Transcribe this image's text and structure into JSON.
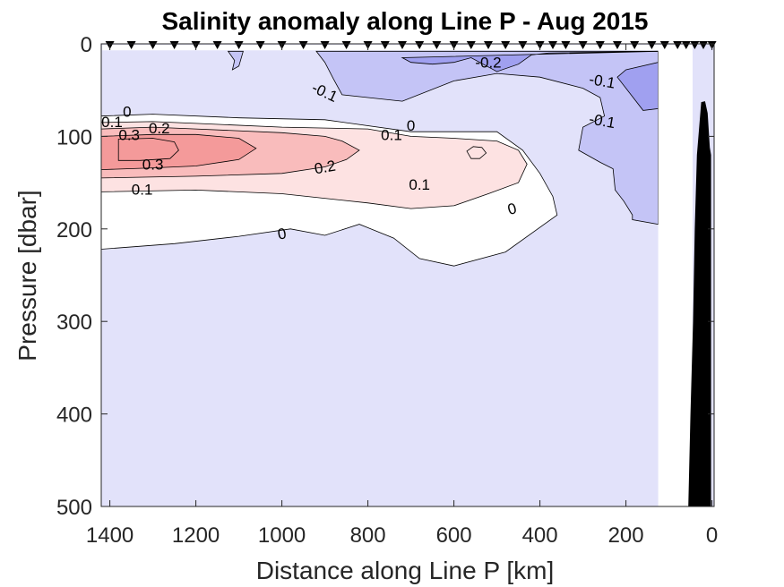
{
  "chart_data": {
    "type": "contour",
    "title": "Salinity anomaly along Line P - Aug 2015",
    "xlabel": "Distance along Line P [km]",
    "ylabel": "Pressure [dbar]",
    "xlim": [
      1420,
      -5
    ],
    "ylim": [
      0,
      500
    ],
    "x_reversed": true,
    "y_reversed": true,
    "x_ticks": [
      1400,
      1200,
      1000,
      800,
      600,
      400,
      200,
      0
    ],
    "x_tick_labels": [
      "1400",
      "1200",
      "1000",
      "800",
      "600",
      "400",
      "200",
      "0"
    ],
    "y_ticks": [
      0,
      100,
      200,
      300,
      400,
      500
    ],
    "y_tick_labels": [
      "0",
      "100",
      "200",
      "300",
      "400",
      "500"
    ],
    "colors": {
      "neg_0_2": "#a0a0f0",
      "neg_0_1": "#c4c4f6",
      "near_zero_neg": "#e2e2fa",
      "near_zero_pos": "#ffffff",
      "pos_0_1": "#fde2e2",
      "pos_0_2": "#f9bcbc",
      "pos_0_3": "#f49a9a",
      "bathymetry": "#000000"
    },
    "station_distances_km": [
      1400,
      1350,
      1300,
      1250,
      1200,
      1150,
      1100,
      1050,
      1000,
      950,
      900,
      850,
      800,
      760,
      720,
      680,
      640,
      600,
      560,
      520,
      480,
      440,
      400,
      370,
      340,
      300,
      260,
      220,
      180,
      140,
      110,
      80,
      60,
      40,
      20,
      0
    ],
    "data_gap_km": [
      125,
      45
    ],
    "regions": [
      {
        "level": 0,
        "points": [
          [
            1420,
            78
          ],
          [
            1300,
            76
          ],
          [
            1100,
            80
          ],
          [
            900,
            82
          ],
          [
            700,
            95
          ],
          [
            500,
            95
          ],
          [
            440,
            115
          ],
          [
            400,
            140
          ],
          [
            370,
            165
          ],
          [
            360,
            185
          ],
          [
            480,
            225
          ],
          [
            600,
            240
          ],
          [
            680,
            232
          ],
          [
            740,
            210
          ],
          [
            820,
            195
          ],
          [
            900,
            207
          ],
          [
            980,
            200
          ],
          [
            1100,
            208
          ],
          [
            1250,
            216
          ],
          [
            1420,
            222
          ]
        ]
      },
      {
        "level": 0.1,
        "points": [
          [
            1420,
            85
          ],
          [
            1300,
            84
          ],
          [
            1200,
            86
          ],
          [
            1000,
            90
          ],
          [
            800,
            92
          ],
          [
            700,
            100
          ],
          [
            600,
            102
          ],
          [
            500,
            105
          ],
          [
            450,
            115
          ],
          [
            430,
            130
          ],
          [
            450,
            150
          ],
          [
            520,
            162
          ],
          [
            600,
            175
          ],
          [
            700,
            178
          ],
          [
            800,
            172
          ],
          [
            1000,
            162
          ],
          [
            1200,
            158
          ],
          [
            1420,
            160
          ]
        ]
      },
      {
        "level": 0.2,
        "points": [
          [
            1420,
            92
          ],
          [
            1300,
            90
          ],
          [
            1200,
            92
          ],
          [
            1000,
            96
          ],
          [
            900,
            100
          ],
          [
            860,
            105
          ],
          [
            820,
            115
          ],
          [
            850,
            125
          ],
          [
            900,
            133
          ],
          [
            1000,
            140
          ],
          [
            1200,
            143
          ],
          [
            1420,
            145
          ]
        ]
      },
      {
        "level": 0.3,
        "points": [
          [
            1420,
            100
          ],
          [
            1300,
            98
          ],
          [
            1200,
            98
          ],
          [
            1100,
            102
          ],
          [
            1060,
            113
          ],
          [
            1100,
            125
          ],
          [
            1200,
            132
          ],
          [
            1300,
            134
          ],
          [
            1420,
            136
          ]
        ]
      },
      {
        "level": 0.3,
        "points": [
          [
            1380,
            103
          ],
          [
            1300,
            102
          ],
          [
            1250,
            106
          ],
          [
            1240,
            115
          ],
          [
            1260,
            124
          ],
          [
            1330,
            126
          ],
          [
            1380,
            126
          ]
        ]
      },
      {
        "level": 0.1,
        "points": [
          [
            570,
            116
          ],
          [
            555,
            111
          ],
          [
            535,
            112
          ],
          [
            525,
            118
          ],
          [
            540,
            124
          ],
          [
            560,
            124
          ]
        ]
      },
      {
        "level": -0.1,
        "points": [
          [
            1125,
            8
          ],
          [
            1110,
            18
          ],
          [
            1115,
            28
          ],
          [
            1100,
            24
          ],
          [
            1090,
            8
          ]
        ]
      },
      {
        "level": -0.1,
        "points": [
          [
            920,
            8
          ],
          [
            900,
            20
          ],
          [
            880,
            38
          ],
          [
            860,
            55
          ],
          [
            800,
            58
          ],
          [
            720,
            62
          ],
          [
            600,
            40
          ],
          [
            500,
            32
          ],
          [
            400,
            36
          ],
          [
            300,
            48
          ],
          [
            260,
            58
          ],
          [
            250,
            78
          ],
          [
            300,
            90
          ],
          [
            310,
            115
          ],
          [
            260,
            128
          ],
          [
            230,
            135
          ],
          [
            225,
            158
          ],
          [
            205,
            170
          ],
          [
            185,
            185
          ],
          [
            185,
            190
          ],
          [
            125,
            195
          ],
          [
            125,
            8
          ]
        ]
      },
      {
        "level": -0.2,
        "points": [
          [
            720,
            15
          ],
          [
            700,
            20
          ],
          [
            650,
            22
          ],
          [
            600,
            20
          ],
          [
            560,
            15
          ],
          [
            500,
            30
          ],
          [
            450,
            22
          ],
          [
            420,
            12
          ],
          [
            380,
            10
          ],
          [
            125,
            8
          ],
          [
            125,
            20
          ],
          [
            200,
            28
          ],
          [
            220,
            36
          ],
          [
            180,
            60
          ],
          [
            160,
            72
          ],
          [
            125,
            70
          ],
          [
            125,
            8
          ]
        ]
      }
    ],
    "labels": [
      {
        "text": "-0.2",
        "x": 520,
        "y": 20,
        "angle": 0
      },
      {
        "text": "-0.1",
        "x": 900,
        "y": 52,
        "angle": 25
      },
      {
        "text": "-0.1",
        "x": 255,
        "y": 40,
        "angle": 10
      },
      {
        "text": "-0.1",
        "x": 255,
        "y": 83,
        "angle": 10
      },
      {
        "text": "0",
        "x": 1360,
        "y": 73,
        "angle": 0
      },
      {
        "text": "0.1",
        "x": 1395,
        "y": 84,
        "angle": 0
      },
      {
        "text": "0.3",
        "x": 1355,
        "y": 98,
        "angle": 0
      },
      {
        "text": "0.2",
        "x": 1285,
        "y": 91,
        "angle": 0
      },
      {
        "text": "0.3",
        "x": 1300,
        "y": 130,
        "angle": 0
      },
      {
        "text": "0.2",
        "x": 900,
        "y": 133,
        "angle": -10
      },
      {
        "text": "0.1",
        "x": 1325,
        "y": 157,
        "angle": 0
      },
      {
        "text": "0.1",
        "x": 745,
        "y": 98,
        "angle": 0
      },
      {
        "text": "0",
        "x": 700,
        "y": 88,
        "angle": 0
      },
      {
        "text": "0.1",
        "x": 680,
        "y": 152,
        "angle": 0
      },
      {
        "text": "0",
        "x": 465,
        "y": 178,
        "angle": -15
      },
      {
        "text": "0",
        "x": 1000,
        "y": 205,
        "angle": -10
      }
    ],
    "bathymetry_outline": [
      [
        55,
        500
      ],
      [
        50,
        400
      ],
      [
        44,
        300
      ],
      [
        40,
        200
      ],
      [
        35,
        120
      ],
      [
        25,
        63
      ],
      [
        16,
        62
      ],
      [
        10,
        75
      ],
      [
        5,
        112
      ],
      [
        2,
        120
      ],
      [
        2,
        500
      ]
    ]
  }
}
